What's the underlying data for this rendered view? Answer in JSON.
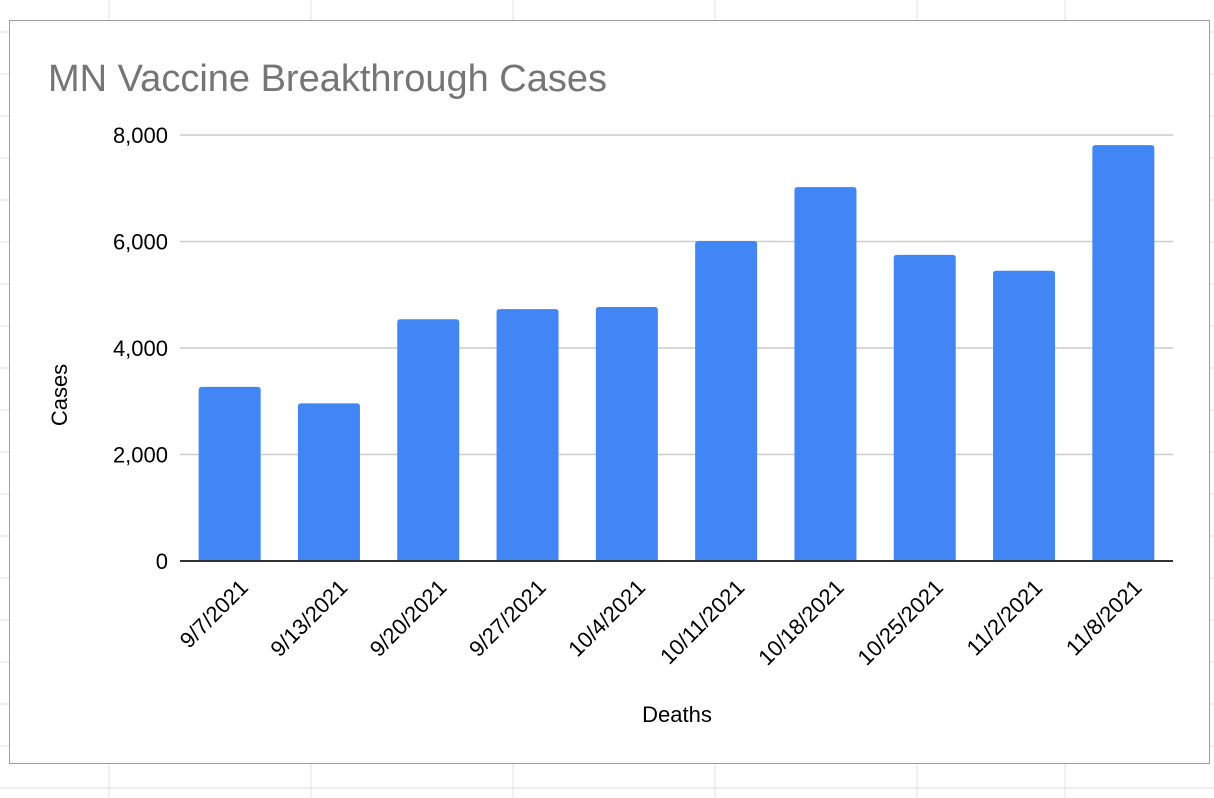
{
  "chart_data": {
    "type": "bar",
    "title": "MN Vaccine Breakthrough Cases",
    "xlabel": "Deaths",
    "ylabel": "Cases",
    "categories": [
      "9/7/2021",
      "9/13/2021",
      "9/20/2021",
      "9/27/2021",
      "10/4/2021",
      "10/11/2021",
      "10/18/2021",
      "10/25/2021",
      "11/2/2021",
      "11/8/2021"
    ],
    "values": [
      3270,
      2960,
      4540,
      4730,
      4770,
      6010,
      7020,
      5750,
      5450,
      7810
    ],
    "ylim": [
      0,
      8000
    ],
    "yticks": [
      0,
      2000,
      4000,
      6000,
      8000
    ],
    "ytick_labels": [
      "0",
      "2,000",
      "4,000",
      "6,000",
      "8,000"
    ],
    "grid": true,
    "legend": "none",
    "bar_color": "#4285f4",
    "grid_color": "#cccccc",
    "axis_color": "#333333"
  }
}
